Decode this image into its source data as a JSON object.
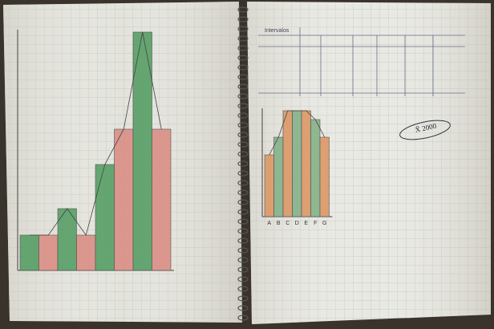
{
  "left_chart": {
    "type": "bar",
    "categories": [
      null,
      null,
      null,
      null,
      null,
      null,
      null,
      null
    ],
    "values": [
      4,
      4,
      7,
      4,
      12,
      16,
      27,
      16
    ],
    "colors": [
      "#4f9a5e",
      "#d98a80",
      "#4f9a5e",
      "#d98a80",
      "#4f9a5e",
      "#d98a80",
      "#4f9a5e",
      "#d98a80"
    ]
  },
  "right_chart": {
    "type": "bar",
    "categories": [
      "A",
      "B",
      "C",
      "D",
      "E",
      "F",
      "G"
    ],
    "values": [
      7,
      9,
      12,
      12,
      12,
      11,
      9
    ],
    "colors": [
      "#d9935f",
      "#7fae84",
      "#d9935f",
      "#7fae84",
      "#d9935f",
      "#7fae84",
      "#d9935f"
    ]
  },
  "table": {
    "header": "Intervalos"
  },
  "annotation": "X̄ 2000"
}
